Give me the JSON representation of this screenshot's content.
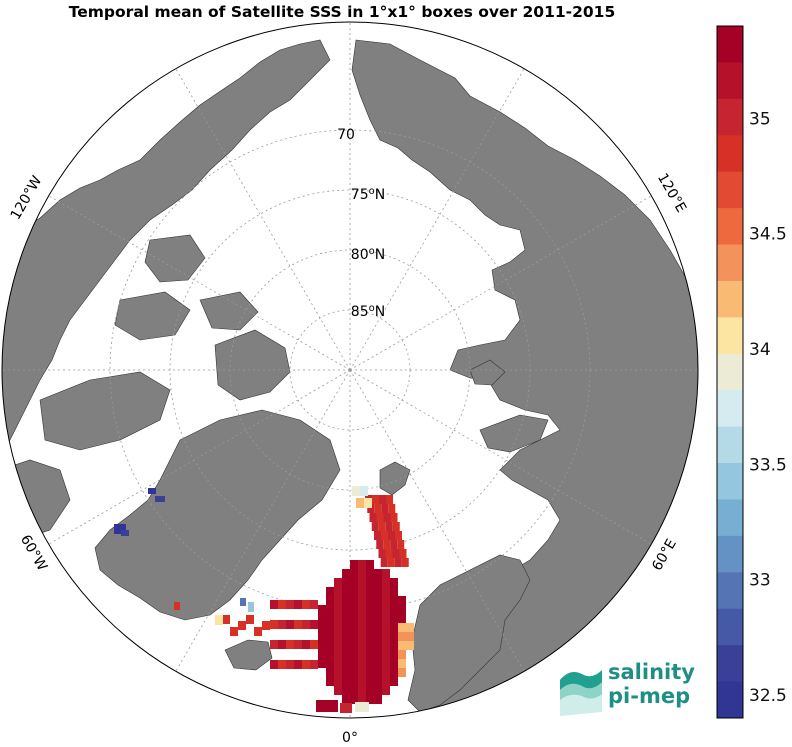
{
  "title": "Temporal mean of Satellite SSS in 1°x1° boxes over 2011-2015",
  "map": {
    "projection": "north-polar-stereographic",
    "land_color": "#808080",
    "ocean_color": "#ffffff",
    "lat_labels": [
      "70",
      "75",
      "80",
      "85"
    ],
    "lat_suffix": "N",
    "lon_labels": {
      "west_120": "120°W",
      "east_120": "120°E",
      "west_60": "60°W",
      "east_60": "60°E",
      "zero": "0°"
    }
  },
  "colorbar": {
    "min": 32.4,
    "max": 35.4,
    "ticks": [
      "35",
      "34.5",
      "34",
      "33.5",
      "33",
      "32.5"
    ],
    "tick_values": [
      35,
      34.5,
      34,
      33.5,
      33,
      32.5
    ],
    "colors": [
      "#a50026",
      "#b5112b",
      "#c62430",
      "#d73027",
      "#e34a33",
      "#ee6a3e",
      "#f4925b",
      "#f9bb74",
      "#fce4a2",
      "#ececd6",
      "#d6ebef",
      "#b4dae8",
      "#94c6df",
      "#78aed2",
      "#6492c4",
      "#5574b4",
      "#4659a6",
      "#3a3f98",
      "#313695"
    ]
  },
  "logo": {
    "line1": "salinity",
    "line2": "pi-mep"
  }
}
